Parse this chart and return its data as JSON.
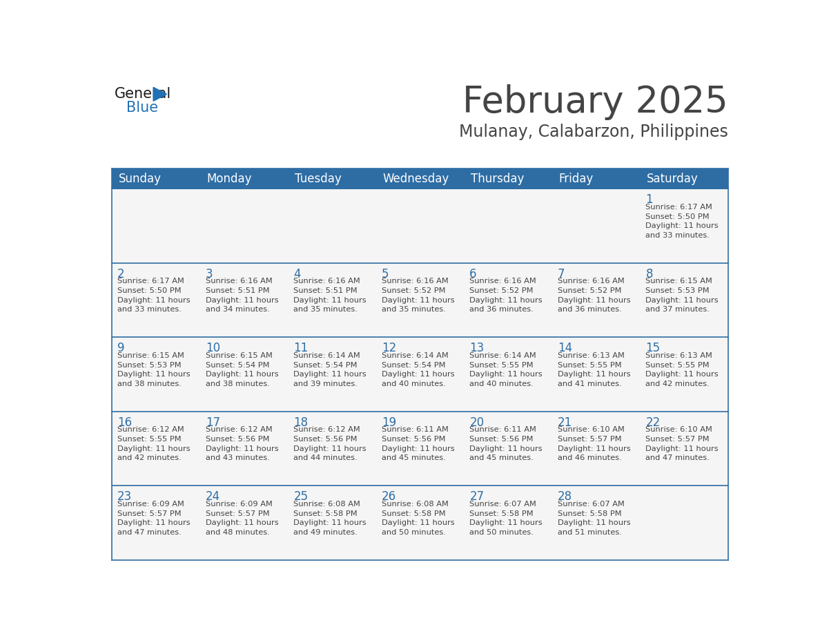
{
  "title": "February 2025",
  "subtitle": "Mulanay, Calabarzon, Philippines",
  "header_bg": "#2E6DA4",
  "header_text": "#FFFFFF",
  "cell_bg": "#F5F5F5",
  "border_color": "#2E6DA4",
  "text_color": "#444444",
  "day_number_color": "#2E6DA4",
  "days_of_week": [
    "Sunday",
    "Monday",
    "Tuesday",
    "Wednesday",
    "Thursday",
    "Friday",
    "Saturday"
  ],
  "weeks": [
    [
      {
        "day": "",
        "info": ""
      },
      {
        "day": "",
        "info": ""
      },
      {
        "day": "",
        "info": ""
      },
      {
        "day": "",
        "info": ""
      },
      {
        "day": "",
        "info": ""
      },
      {
        "day": "",
        "info": ""
      },
      {
        "day": "1",
        "info": "Sunrise: 6:17 AM\nSunset: 5:50 PM\nDaylight: 11 hours\nand 33 minutes."
      }
    ],
    [
      {
        "day": "2",
        "info": "Sunrise: 6:17 AM\nSunset: 5:50 PM\nDaylight: 11 hours\nand 33 minutes."
      },
      {
        "day": "3",
        "info": "Sunrise: 6:16 AM\nSunset: 5:51 PM\nDaylight: 11 hours\nand 34 minutes."
      },
      {
        "day": "4",
        "info": "Sunrise: 6:16 AM\nSunset: 5:51 PM\nDaylight: 11 hours\nand 35 minutes."
      },
      {
        "day": "5",
        "info": "Sunrise: 6:16 AM\nSunset: 5:52 PM\nDaylight: 11 hours\nand 35 minutes."
      },
      {
        "day": "6",
        "info": "Sunrise: 6:16 AM\nSunset: 5:52 PM\nDaylight: 11 hours\nand 36 minutes."
      },
      {
        "day": "7",
        "info": "Sunrise: 6:16 AM\nSunset: 5:52 PM\nDaylight: 11 hours\nand 36 minutes."
      },
      {
        "day": "8",
        "info": "Sunrise: 6:15 AM\nSunset: 5:53 PM\nDaylight: 11 hours\nand 37 minutes."
      }
    ],
    [
      {
        "day": "9",
        "info": "Sunrise: 6:15 AM\nSunset: 5:53 PM\nDaylight: 11 hours\nand 38 minutes."
      },
      {
        "day": "10",
        "info": "Sunrise: 6:15 AM\nSunset: 5:54 PM\nDaylight: 11 hours\nand 38 minutes."
      },
      {
        "day": "11",
        "info": "Sunrise: 6:14 AM\nSunset: 5:54 PM\nDaylight: 11 hours\nand 39 minutes."
      },
      {
        "day": "12",
        "info": "Sunrise: 6:14 AM\nSunset: 5:54 PM\nDaylight: 11 hours\nand 40 minutes."
      },
      {
        "day": "13",
        "info": "Sunrise: 6:14 AM\nSunset: 5:55 PM\nDaylight: 11 hours\nand 40 minutes."
      },
      {
        "day": "14",
        "info": "Sunrise: 6:13 AM\nSunset: 5:55 PM\nDaylight: 11 hours\nand 41 minutes."
      },
      {
        "day": "15",
        "info": "Sunrise: 6:13 AM\nSunset: 5:55 PM\nDaylight: 11 hours\nand 42 minutes."
      }
    ],
    [
      {
        "day": "16",
        "info": "Sunrise: 6:12 AM\nSunset: 5:55 PM\nDaylight: 11 hours\nand 42 minutes."
      },
      {
        "day": "17",
        "info": "Sunrise: 6:12 AM\nSunset: 5:56 PM\nDaylight: 11 hours\nand 43 minutes."
      },
      {
        "day": "18",
        "info": "Sunrise: 6:12 AM\nSunset: 5:56 PM\nDaylight: 11 hours\nand 44 minutes."
      },
      {
        "day": "19",
        "info": "Sunrise: 6:11 AM\nSunset: 5:56 PM\nDaylight: 11 hours\nand 45 minutes."
      },
      {
        "day": "20",
        "info": "Sunrise: 6:11 AM\nSunset: 5:56 PM\nDaylight: 11 hours\nand 45 minutes."
      },
      {
        "day": "21",
        "info": "Sunrise: 6:10 AM\nSunset: 5:57 PM\nDaylight: 11 hours\nand 46 minutes."
      },
      {
        "day": "22",
        "info": "Sunrise: 6:10 AM\nSunset: 5:57 PM\nDaylight: 11 hours\nand 47 minutes."
      }
    ],
    [
      {
        "day": "23",
        "info": "Sunrise: 6:09 AM\nSunset: 5:57 PM\nDaylight: 11 hours\nand 47 minutes."
      },
      {
        "day": "24",
        "info": "Sunrise: 6:09 AM\nSunset: 5:57 PM\nDaylight: 11 hours\nand 48 minutes."
      },
      {
        "day": "25",
        "info": "Sunrise: 6:08 AM\nSunset: 5:58 PM\nDaylight: 11 hours\nand 49 minutes."
      },
      {
        "day": "26",
        "info": "Sunrise: 6:08 AM\nSunset: 5:58 PM\nDaylight: 11 hours\nand 50 minutes."
      },
      {
        "day": "27",
        "info": "Sunrise: 6:07 AM\nSunset: 5:58 PM\nDaylight: 11 hours\nand 50 minutes."
      },
      {
        "day": "28",
        "info": "Sunrise: 6:07 AM\nSunset: 5:58 PM\nDaylight: 11 hours\nand 51 minutes."
      },
      {
        "day": "",
        "info": ""
      }
    ]
  ],
  "logo_general_color": "#1a1a1a",
  "logo_blue_color": "#2171B5",
  "title_fontsize": 38,
  "subtitle_fontsize": 17,
  "header_fontsize": 12,
  "day_num_fontsize": 12,
  "info_fontsize": 8.2
}
